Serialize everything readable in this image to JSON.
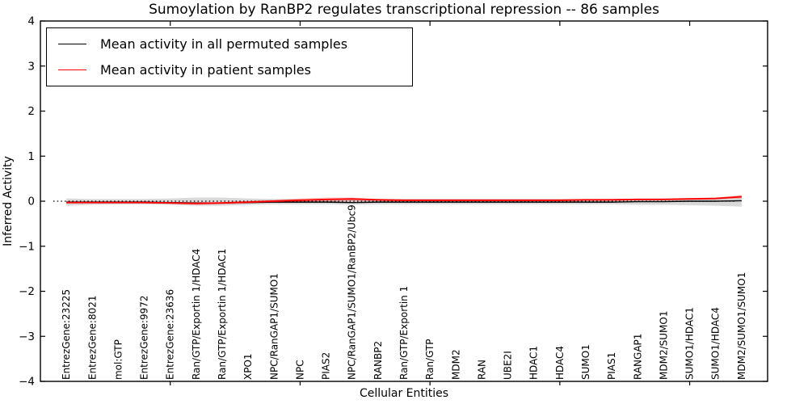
{
  "title": "Sumoylation by RanBP2 regulates transcriptional repression -- 86 samples",
  "axes": {
    "xlabel": "Cellular Entities",
    "ylabel": "Inferred Activity"
  },
  "legend": {
    "items": [
      {
        "label": "Mean activity in all permuted samples",
        "color": "#000000"
      },
      {
        "label": "Mean activity in patient samples",
        "color": "#ff0000"
      }
    ]
  },
  "chart_data": {
    "type": "line",
    "title": "Sumoylation by RanBP2 regulates transcriptional repression -- 86 samples",
    "xlabel": "Cellular Entities",
    "ylabel": "Inferred Activity",
    "ylim": [
      -4,
      4
    ],
    "yticks": [
      4,
      3,
      2,
      1,
      0,
      -1,
      -2,
      -3,
      -4
    ],
    "xtick_positions": [
      5,
      10,
      15,
      20,
      25
    ],
    "grid": false,
    "legend_position": "upper left",
    "zero_line": 0,
    "categories": [
      "EntrezGene:23225",
      "EntrezGene:8021",
      "mol:GTP",
      "EntrezGene:9972",
      "EntrezGene:23636",
      "Ran/GTP/Exportin 1/HDAC4",
      "Ran/GTP/Exportin 1/HDAC1",
      "XPO1",
      "NPC/RanGAP1/SUMO1",
      "NPC",
      "PIAS2",
      "NPC/RanGAP1/SUMO1/RanBP2/Ubc9",
      "RANBP2",
      "Ran/GTP/Exportin 1",
      "Ran/GTP",
      "MDM2",
      "RAN",
      "UBE2I",
      "HDAC1",
      "HDAC4",
      "SUMO1",
      "PIAS1",
      "RANGAP1",
      "MDM2/SUMO1",
      "SUMO1/HDAC1",
      "SUMO1/HDAC4",
      "MDM2/SUMO1/SUMO1"
    ],
    "series": [
      {
        "name": "Mean activity in all permuted samples",
        "color": "#000000",
        "values": [
          -0.02,
          -0.02,
          -0.02,
          -0.02,
          -0.03,
          -0.04,
          -0.04,
          -0.03,
          -0.02,
          -0.02,
          -0.02,
          -0.03,
          -0.02,
          -0.02,
          -0.02,
          -0.02,
          -0.02,
          -0.02,
          -0.02,
          -0.02,
          -0.02,
          -0.02,
          -0.01,
          -0.01,
          0.0,
          0.0,
          0.01
        ]
      },
      {
        "name": "Mean activity in patient samples",
        "color": "#ff0000",
        "values": [
          -0.03,
          -0.03,
          -0.03,
          -0.03,
          -0.04,
          -0.05,
          -0.04,
          -0.02,
          0.0,
          0.02,
          0.04,
          0.05,
          0.03,
          0.02,
          0.02,
          0.02,
          0.02,
          0.02,
          0.02,
          0.02,
          0.03,
          0.03,
          0.04,
          0.04,
          0.05,
          0.06,
          0.1
        ]
      }
    ],
    "bands": [
      {
        "name": "permuted-samples-envelope",
        "color": "rgba(0,0,0,0.15)",
        "upper": [
          0.06,
          0.05,
          0.05,
          0.05,
          0.06,
          0.08,
          0.08,
          0.06,
          0.05,
          0.05,
          0.05,
          0.06,
          0.05,
          0.05,
          0.05,
          0.05,
          0.05,
          0.05,
          0.05,
          0.05,
          0.05,
          0.05,
          0.06,
          0.06,
          0.07,
          0.08,
          0.1
        ],
        "lower": [
          -0.1,
          -0.08,
          -0.07,
          -0.07,
          -0.08,
          -0.1,
          -0.1,
          -0.08,
          -0.07,
          -0.07,
          -0.07,
          -0.08,
          -0.07,
          -0.07,
          -0.07,
          -0.07,
          -0.07,
          -0.07,
          -0.07,
          -0.07,
          -0.07,
          -0.07,
          -0.08,
          -0.08,
          -0.09,
          -0.1,
          -0.12
        ],
        "label": ""
      },
      {
        "name": "patient-samples-envelope",
        "color": "rgba(255,0,0,0.22)",
        "upper": [
          -0.01,
          -0.01,
          -0.01,
          -0.01,
          -0.02,
          -0.02,
          -0.02,
          0.0,
          0.03,
          0.06,
          0.08,
          0.08,
          0.05,
          0.04,
          0.04,
          0.04,
          0.04,
          0.04,
          0.04,
          0.04,
          0.04,
          0.05,
          0.05,
          0.06,
          0.07,
          0.08,
          0.14
        ],
        "lower": [
          -0.05,
          -0.05,
          -0.05,
          -0.05,
          -0.06,
          -0.08,
          -0.07,
          -0.05,
          -0.03,
          -0.02,
          -0.01,
          0.0,
          0.0,
          0.0,
          0.0,
          0.0,
          0.0,
          0.0,
          0.0,
          0.0,
          0.01,
          0.01,
          0.02,
          0.02,
          0.03,
          0.04,
          0.06
        ],
        "label": ""
      }
    ]
  }
}
